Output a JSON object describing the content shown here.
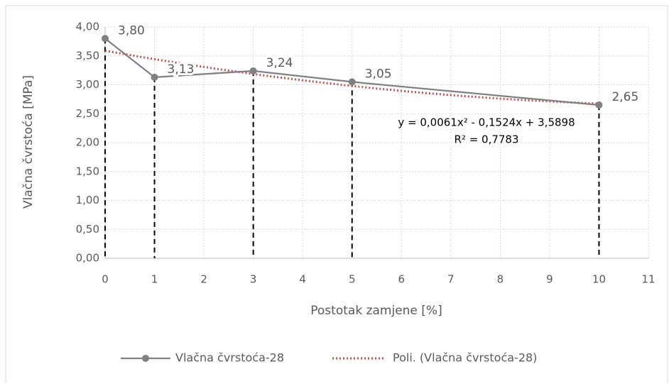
{
  "chart_data": {
    "type": "line",
    "x_label": "Postotak zamjene [%]",
    "y_label": "Vlačna čvrstoća [MPa]",
    "x": [
      0,
      1,
      3,
      5,
      10
    ],
    "series": [
      {
        "name": "Vlačna čvrstoća-28",
        "color": "#808080",
        "values": [
          3.8,
          3.13,
          3.24,
          3.05,
          2.65
        ],
        "value_labels": [
          "3,80",
          "3,13",
          "3,24",
          "3,05",
          "2,65"
        ]
      }
    ],
    "trendline": {
      "name": "Poli. (Vlačna čvrstoća-28)",
      "color": "#c0504d",
      "coefficients": [
        0.0061,
        -0.1524,
        3.5898
      ],
      "equation": "y = 0,0061x² - 0,1524x + 3,5898",
      "r2": "R² = 0,7783"
    },
    "xlim": [
      0,
      11
    ],
    "xticks": [
      0,
      1,
      2,
      3,
      4,
      5,
      6,
      7,
      8,
      9,
      10,
      11
    ],
    "ylim": [
      0,
      4
    ],
    "yticks": [
      {
        "value": 0,
        "label": "0,00"
      },
      {
        "value": 0.5,
        "label": "0,50"
      },
      {
        "value": 1,
        "label": "1,00"
      },
      {
        "value": 1.5,
        "label": "1,50"
      },
      {
        "value": 2,
        "label": "2,00"
      },
      {
        "value": 2.5,
        "label": "2,50"
      },
      {
        "value": 3,
        "label": "3,00"
      },
      {
        "value": 3.5,
        "label": "3,50"
      },
      {
        "value": 4,
        "label": "4,00"
      }
    ],
    "grid": true,
    "drop_lines": true,
    "legend": "bottom"
  }
}
